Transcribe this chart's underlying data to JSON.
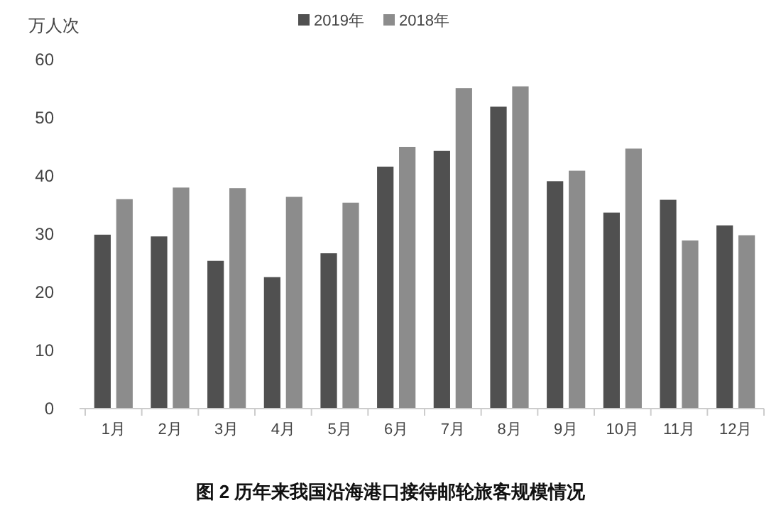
{
  "chart_data": {
    "type": "bar",
    "title": "图 2 历年来我国沿海港口接待邮轮旅客规模情况",
    "ylabel": "万人次",
    "categories": [
      "1月",
      "2月",
      "3月",
      "4月",
      "5月",
      "6月",
      "7月",
      "8月",
      "9月",
      "10月",
      "11月",
      "12月"
    ],
    "series": [
      {
        "name": "2019年",
        "color": "#505050",
        "values": [
          29.9,
          29.6,
          25.4,
          22.6,
          26.7,
          41.6,
          44.3,
          51.9,
          39.1,
          33.7,
          35.9,
          31.5
        ]
      },
      {
        "name": "2018年",
        "color": "#8c8c8c",
        "values": [
          36.0,
          38.0,
          37.9,
          36.4,
          35.4,
          45.0,
          55.1,
          55.4,
          40.9,
          44.7,
          28.9,
          29.8
        ]
      }
    ],
    "ylim": [
      0,
      60
    ],
    "yticks": [
      0,
      10,
      20,
      30,
      40,
      50,
      60
    ],
    "grid": false,
    "legend": "top"
  }
}
